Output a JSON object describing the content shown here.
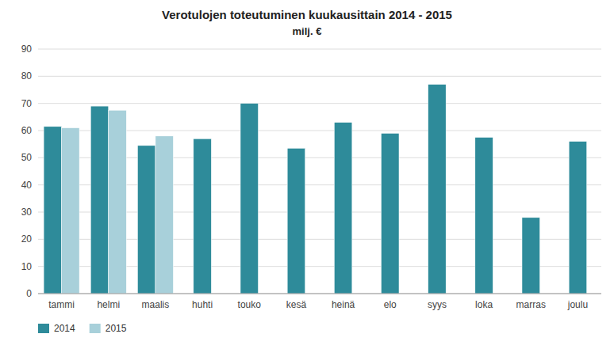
{
  "chart_data": {
    "type": "bar",
    "title": "Verotulojen toteutuminen kuukausittain 2014 - 2015",
    "subtitle": "milj. €",
    "categories": [
      "tammi",
      "helmi",
      "maalis",
      "huhti",
      "touko",
      "kesä",
      "heinä",
      "elo",
      "syys",
      "loka",
      "marras",
      "joulu"
    ],
    "series": [
      {
        "name": "2014",
        "color": "#2E8B9A",
        "values": [
          61.5,
          69.0,
          54.5,
          57.0,
          70.0,
          53.5,
          63.0,
          59.0,
          77.0,
          57.5,
          28.0,
          56.0
        ]
      },
      {
        "name": "2015",
        "color": "#A8D0DA",
        "values": [
          61.0,
          67.5,
          58.0,
          null,
          null,
          null,
          null,
          null,
          null,
          null,
          null,
          null
        ]
      }
    ],
    "ylim": [
      0,
      90
    ],
    "yticks": [
      0,
      10,
      20,
      30,
      40,
      50,
      60,
      70,
      80,
      90
    ],
    "grid": true,
    "legend": "bottom"
  }
}
